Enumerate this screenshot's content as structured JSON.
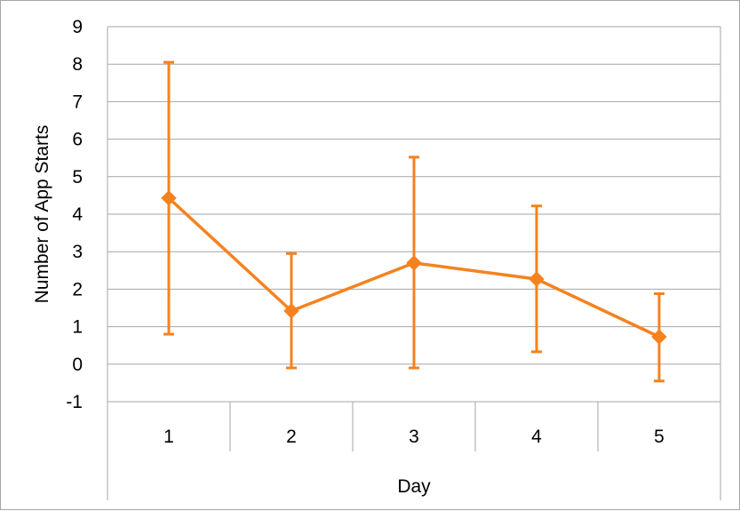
{
  "chart_data": {
    "type": "line",
    "categories": [
      "1",
      "2",
      "3",
      "4",
      "5"
    ],
    "series": [
      {
        "values": [
          4.43,
          1.42,
          2.7,
          2.27,
          0.73
        ],
        "error_low": [
          0.8,
          -0.1,
          -0.1,
          0.33,
          -0.45
        ],
        "error_high": [
          8.05,
          2.95,
          5.52,
          4.22,
          1.88
        ],
        "color": "#f5821f",
        "marker": "diamond"
      }
    ],
    "title": "",
    "xlabel": "Day",
    "ylabel": "Number of App Starts",
    "ylim": [
      -1,
      9
    ],
    "yticks": [
      -1,
      0,
      1,
      2,
      3,
      4,
      5,
      6,
      7,
      8,
      9
    ],
    "grid": true,
    "legend": "none",
    "colors": {
      "series": "#f5821f",
      "grid": "#a6a6a6",
      "axis": "#a6a6a6",
      "text": "#000000"
    }
  }
}
